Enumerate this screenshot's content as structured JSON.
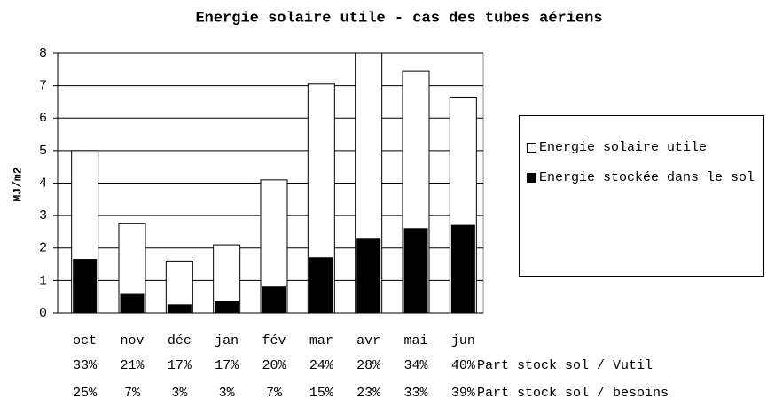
{
  "chart_data": {
    "type": "overlay_bar",
    "title": "Energie solaire utile - cas des tubes aériens",
    "y_label": "MJ/m2",
    "categories": [
      "oct",
      "nov",
      "déc",
      "jan",
      "fév",
      "mar",
      "avr",
      "mai",
      "jun"
    ],
    "series": [
      {
        "name": "Energie solaire utile",
        "color": "#ffffff",
        "values": [
          5.0,
          2.75,
          1.6,
          2.1,
          4.1,
          7.05,
          8.0,
          7.45,
          6.65
        ]
      },
      {
        "name": "Energie stockée dans le sol",
        "color": "#000000",
        "values": [
          1.65,
          0.6,
          0.25,
          0.35,
          0.8,
          1.7,
          2.3,
          2.6,
          2.7
        ]
      }
    ],
    "ylim": [
      0,
      8
    ],
    "yticks": [
      0,
      1,
      2,
      3,
      4,
      5,
      6,
      7,
      8
    ],
    "grid": true,
    "legend": "right",
    "rows": [
      {
        "name": "Part stock sol / Vutil",
        "values": [
          33,
          21,
          17,
          17,
          20,
          24,
          28,
          34,
          40
        ],
        "value_labels": [
          "33%",
          "21%",
          "17%",
          "17%",
          "20%",
          "24%",
          "28%",
          "34%",
          "40%"
        ]
      },
      {
        "name": "Part stock sol / besoins",
        "values": [
          25,
          7,
          3,
          3,
          7,
          15,
          23,
          33,
          39
        ],
        "value_labels": [
          "25%",
          "7%",
          "3%",
          "3%",
          "7%",
          "15%",
          "23%",
          "33%",
          "39%"
        ]
      }
    ]
  }
}
